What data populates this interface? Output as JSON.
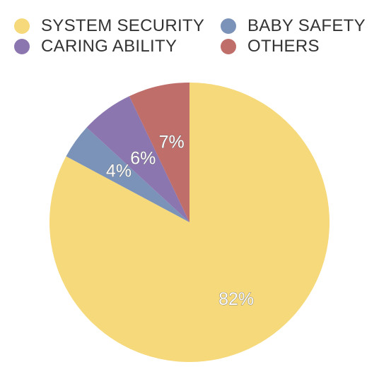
{
  "chart_data": {
    "type": "pie",
    "slices": [
      {
        "label": "SYSTEM SECURITY",
        "value": 82,
        "display": "82%",
        "color": "#F5D97A"
      },
      {
        "label": "BABY SAFETY",
        "value": 4,
        "display": "4%",
        "color": "#7B93B8"
      },
      {
        "label": "CARING ABILITY",
        "value": 6,
        "display": "6%",
        "color": "#8C76B0"
      },
      {
        "label": "OTHERS",
        "value": 7,
        "display": "7%",
        "color": "#BF6E6A"
      }
    ],
    "start_angle": "12 o'clock",
    "direction": "clockwise",
    "legend_position": "top",
    "legend": [
      {
        "label": "SYSTEM SECURITY",
        "color": "#F5D97A"
      },
      {
        "label": "BABY SAFETY",
        "color": "#7B93B8"
      },
      {
        "label": "CARING ABILITY",
        "color": "#8C76B0"
      },
      {
        "label": "OTHERS",
        "color": "#BF6E6A"
      }
    ]
  }
}
